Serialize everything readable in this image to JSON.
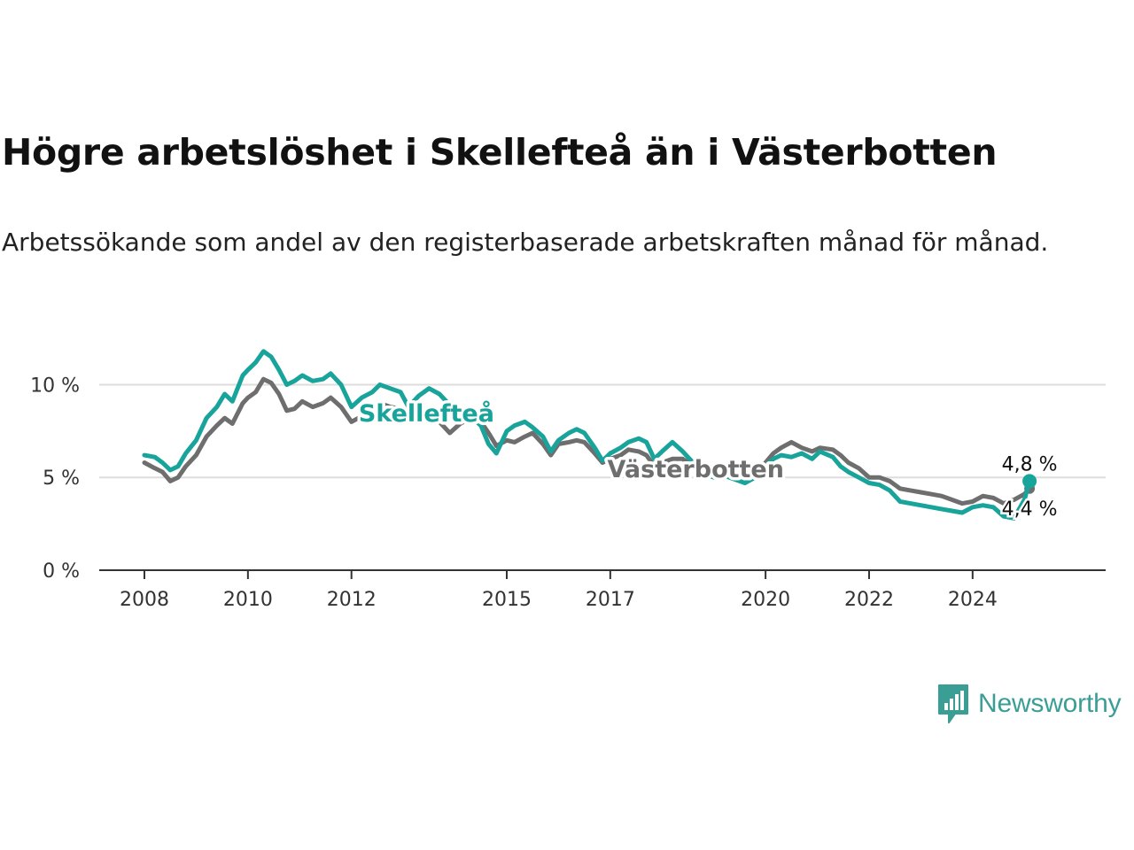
{
  "title": "Högre arbetslöshet i Skellefteå än i Västerbotten",
  "subtitle": "Arbetssökande som andel av den registerbaserade arbetskraften månad för månad.",
  "brand": {
    "name": "Newsworthy",
    "color": "#3a9e95",
    "icon": "newsworthy-chart-bubble-icon"
  },
  "chart_data": {
    "type": "line",
    "xlim": [
      2008.0,
      2025.8
    ],
    "ylim": [
      0,
      10.5
    ],
    "grid": true,
    "x_ticks": [
      {
        "value": 2008,
        "label": "2008"
      },
      {
        "value": 2010,
        "label": "2010"
      },
      {
        "value": 2012,
        "label": "2012"
      },
      {
        "value": 2015,
        "label": "2015"
      },
      {
        "value": 2017,
        "label": "2017"
      },
      {
        "value": 2020,
        "label": "2020"
      },
      {
        "value": 2022,
        "label": "2022"
      },
      {
        "value": 2024,
        "label": "2024"
      }
    ],
    "y_ticks": [
      {
        "value": 0,
        "label": "0 %"
      },
      {
        "value": 5,
        "label": "5 %"
      },
      {
        "value": 10,
        "label": "10 %"
      }
    ],
    "series": [
      {
        "name": "Västerbotten",
        "color": "#6e6e6e",
        "end_label": "4,4 %",
        "points": [
          [
            2008.0,
            5.8
          ],
          [
            2008.2,
            5.5
          ],
          [
            2008.35,
            5.3
          ],
          [
            2008.5,
            4.8
          ],
          [
            2008.65,
            5.0
          ],
          [
            2008.8,
            5.6
          ],
          [
            2009.0,
            6.2
          ],
          [
            2009.2,
            7.2
          ],
          [
            2009.4,
            7.8
          ],
          [
            2009.55,
            8.2
          ],
          [
            2009.7,
            7.9
          ],
          [
            2009.9,
            9.0
          ],
          [
            2010.0,
            9.3
          ],
          [
            2010.15,
            9.6
          ],
          [
            2010.3,
            10.3
          ],
          [
            2010.45,
            10.1
          ],
          [
            2010.6,
            9.5
          ],
          [
            2010.75,
            8.6
          ],
          [
            2010.9,
            8.7
          ],
          [
            2011.05,
            9.1
          ],
          [
            2011.25,
            8.8
          ],
          [
            2011.45,
            9.0
          ],
          [
            2011.6,
            9.3
          ],
          [
            2011.8,
            8.8
          ],
          [
            2012.0,
            8.0
          ],
          [
            2012.2,
            8.3
          ],
          [
            2012.4,
            8.6
          ],
          [
            2012.55,
            9.0
          ],
          [
            2012.75,
            8.8
          ],
          [
            2012.95,
            8.7
          ],
          [
            2013.1,
            8.0
          ],
          [
            2013.3,
            8.5
          ],
          [
            2013.5,
            8.0
          ],
          [
            2013.7,
            8.0
          ],
          [
            2013.9,
            7.4
          ],
          [
            2014.1,
            7.9
          ],
          [
            2014.3,
            8.2
          ],
          [
            2014.5,
            8.0
          ],
          [
            2014.65,
            7.4
          ],
          [
            2014.8,
            6.7
          ],
          [
            2015.0,
            7.0
          ],
          [
            2015.15,
            6.9
          ],
          [
            2015.35,
            7.2
          ],
          [
            2015.5,
            7.4
          ],
          [
            2015.7,
            6.8
          ],
          [
            2015.85,
            6.2
          ],
          [
            2016.0,
            6.8
          ],
          [
            2016.2,
            6.9
          ],
          [
            2016.35,
            7.0
          ],
          [
            2016.5,
            6.9
          ],
          [
            2016.7,
            6.3
          ],
          [
            2016.85,
            5.8
          ],
          [
            2017.0,
            6.0
          ],
          [
            2017.2,
            6.2
          ],
          [
            2017.35,
            6.5
          ],
          [
            2017.55,
            6.4
          ],
          [
            2017.7,
            6.2
          ],
          [
            2017.85,
            5.6
          ],
          [
            2018.0,
            5.8
          ],
          [
            2018.2,
            6.0
          ],
          [
            2018.4,
            6.0
          ],
          [
            2018.6,
            5.6
          ],
          [
            2018.8,
            5.4
          ],
          [
            2019.0,
            5.2
          ],
          [
            2019.2,
            5.3
          ],
          [
            2019.4,
            5.1
          ],
          [
            2019.6,
            5.0
          ],
          [
            2019.8,
            5.2
          ],
          [
            2020.0,
            5.8
          ],
          [
            2020.15,
            6.3
          ],
          [
            2020.3,
            6.6
          ],
          [
            2020.5,
            6.9
          ],
          [
            2020.7,
            6.6
          ],
          [
            2020.9,
            6.4
          ],
          [
            2021.05,
            6.6
          ],
          [
            2021.3,
            6.5
          ],
          [
            2021.45,
            6.2
          ],
          [
            2021.6,
            5.8
          ],
          [
            2021.8,
            5.5
          ],
          [
            2022.0,
            5.0
          ],
          [
            2022.2,
            5.0
          ],
          [
            2022.4,
            4.8
          ],
          [
            2022.6,
            4.4
          ],
          [
            2022.8,
            4.3
          ],
          [
            2023.0,
            4.2
          ],
          [
            2023.2,
            4.1
          ],
          [
            2023.4,
            4.0
          ],
          [
            2023.6,
            3.8
          ],
          [
            2023.8,
            3.6
          ],
          [
            2024.0,
            3.7
          ],
          [
            2024.2,
            4.0
          ],
          [
            2024.4,
            3.9
          ],
          [
            2024.6,
            3.6
          ],
          [
            2024.8,
            3.8
          ],
          [
            2025.0,
            4.1
          ],
          [
            2025.1,
            4.4
          ]
        ]
      },
      {
        "name": "Skellefteå",
        "color": "#18a39b",
        "end_label": "4,8 %",
        "points": [
          [
            2008.0,
            6.2
          ],
          [
            2008.2,
            6.1
          ],
          [
            2008.35,
            5.8
          ],
          [
            2008.5,
            5.4
          ],
          [
            2008.65,
            5.6
          ],
          [
            2008.8,
            6.3
          ],
          [
            2009.0,
            7.0
          ],
          [
            2009.2,
            8.2
          ],
          [
            2009.4,
            8.8
          ],
          [
            2009.55,
            9.5
          ],
          [
            2009.7,
            9.1
          ],
          [
            2009.9,
            10.5
          ],
          [
            2010.0,
            10.8
          ],
          [
            2010.15,
            11.2
          ],
          [
            2010.3,
            11.8
          ],
          [
            2010.45,
            11.5
          ],
          [
            2010.6,
            10.8
          ],
          [
            2010.75,
            10.0
          ],
          [
            2010.9,
            10.2
          ],
          [
            2011.05,
            10.5
          ],
          [
            2011.25,
            10.2
          ],
          [
            2011.45,
            10.3
          ],
          [
            2011.6,
            10.6
          ],
          [
            2011.8,
            10.0
          ],
          [
            2012.0,
            8.8
          ],
          [
            2012.2,
            9.3
          ],
          [
            2012.4,
            9.6
          ],
          [
            2012.55,
            10.0
          ],
          [
            2012.75,
            9.8
          ],
          [
            2012.95,
            9.6
          ],
          [
            2013.1,
            8.8
          ],
          [
            2013.3,
            9.4
          ],
          [
            2013.5,
            9.8
          ],
          [
            2013.7,
            9.5
          ],
          [
            2013.9,
            8.9
          ],
          [
            2014.1,
            8.6
          ],
          [
            2014.3,
            8.3
          ],
          [
            2014.5,
            7.8
          ],
          [
            2014.65,
            6.8
          ],
          [
            2014.8,
            6.3
          ],
          [
            2015.0,
            7.5
          ],
          [
            2015.15,
            7.8
          ],
          [
            2015.35,
            8.0
          ],
          [
            2015.5,
            7.7
          ],
          [
            2015.7,
            7.2
          ],
          [
            2015.85,
            6.4
          ],
          [
            2016.0,
            7.0
          ],
          [
            2016.2,
            7.4
          ],
          [
            2016.35,
            7.6
          ],
          [
            2016.5,
            7.4
          ],
          [
            2016.7,
            6.6
          ],
          [
            2016.85,
            5.9
          ],
          [
            2017.0,
            6.3
          ],
          [
            2017.2,
            6.6
          ],
          [
            2017.35,
            6.9
          ],
          [
            2017.55,
            7.1
          ],
          [
            2017.7,
            6.9
          ],
          [
            2017.85,
            6.0
          ],
          [
            2018.0,
            6.4
          ],
          [
            2018.2,
            6.9
          ],
          [
            2018.4,
            6.4
          ],
          [
            2018.6,
            5.8
          ],
          [
            2018.8,
            5.2
          ],
          [
            2019.0,
            5.0
          ],
          [
            2019.2,
            5.1
          ],
          [
            2019.4,
            4.9
          ],
          [
            2019.6,
            4.7
          ],
          [
            2019.8,
            5.0
          ],
          [
            2020.0,
            5.6
          ],
          [
            2020.15,
            6.0
          ],
          [
            2020.3,
            6.2
          ],
          [
            2020.5,
            6.1
          ],
          [
            2020.7,
            6.3
          ],
          [
            2020.9,
            6.0
          ],
          [
            2021.05,
            6.4
          ],
          [
            2021.3,
            6.1
          ],
          [
            2021.45,
            5.6
          ],
          [
            2021.6,
            5.3
          ],
          [
            2021.8,
            5.0
          ],
          [
            2022.0,
            4.7
          ],
          [
            2022.2,
            4.6
          ],
          [
            2022.4,
            4.3
          ],
          [
            2022.6,
            3.7
          ],
          [
            2022.8,
            3.6
          ],
          [
            2023.0,
            3.5
          ],
          [
            2023.2,
            3.4
          ],
          [
            2023.4,
            3.3
          ],
          [
            2023.6,
            3.2
          ],
          [
            2023.8,
            3.1
          ],
          [
            2024.0,
            3.4
          ],
          [
            2024.2,
            3.5
          ],
          [
            2024.4,
            3.4
          ],
          [
            2024.6,
            2.9
          ],
          [
            2024.8,
            2.8
          ],
          [
            2025.0,
            3.8
          ],
          [
            2025.1,
            4.8
          ]
        ]
      }
    ]
  }
}
